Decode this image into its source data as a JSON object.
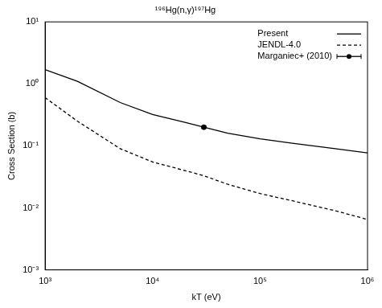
{
  "chart_data": {
    "type": "line",
    "title": "¹⁹⁶Hg(n,γ)¹⁹⁷Hg",
    "x_label": "kT (eV)",
    "y_label": "Cross Section (b)",
    "log": true,
    "grid": false,
    "legend": "upper right",
    "xlim": [
      1000,
      1000000
    ],
    "xticks": [
      {
        "value": 1000,
        "label": "10³"
      },
      {
        "value": 10000,
        "label": "10⁴"
      },
      {
        "value": 100000,
        "label": "10⁵"
      },
      {
        "value": 1000000,
        "label": "10⁶"
      }
    ],
    "ylim": [
      0.001,
      10
    ],
    "yticks": [
      {
        "value": 0.001,
        "label": "10⁻³"
      },
      {
        "value": 0.01,
        "label": "10⁻²"
      },
      {
        "value": 0.1,
        "label": "10⁻¹"
      },
      {
        "value": 1,
        "label": "10⁰"
      },
      {
        "value": 10,
        "label": "10¹"
      }
    ],
    "series": [
      {
        "name": "Present",
        "type": "line",
        "color": "#000000",
        "line_style": "solid",
        "x": [
          1000,
          2000,
          5000,
          10000,
          20000,
          30000,
          50000,
          100000,
          200000,
          500000,
          1000000
        ],
        "values": [
          1.7,
          1.1,
          0.5,
          0.32,
          0.24,
          0.2,
          0.16,
          0.13,
          0.11,
          0.09,
          0.077
        ]
      },
      {
        "name": "JENDL-4.0",
        "type": "line",
        "color": "#000000",
        "line_style": "dashed",
        "x": [
          1000,
          2000,
          5000,
          10000,
          20000,
          30000,
          50000,
          100000,
          200000,
          500000,
          1000000
        ],
        "values": [
          0.6,
          0.25,
          0.09,
          0.055,
          0.04,
          0.033,
          0.024,
          0.017,
          0.013,
          0.009,
          0.0065
        ]
      },
      {
        "name": "Marganiec+ (2010)",
        "type": "scatter",
        "color": "#000000",
        "marker": "circle",
        "x": [
          30000
        ],
        "values": [
          0.2
        ],
        "errors": [
          0.01
        ]
      }
    ]
  }
}
